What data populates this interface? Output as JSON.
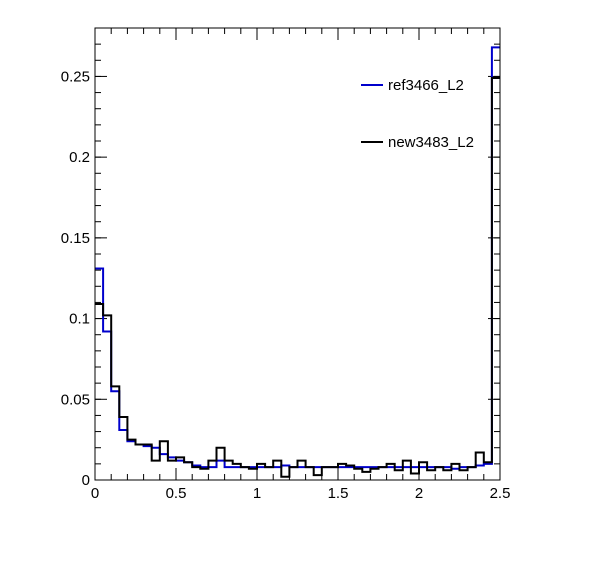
{
  "chart_data": {
    "type": "line",
    "style": "step-histogram",
    "xlim": [
      0,
      2.5
    ],
    "ylim": [
      0,
      0.28
    ],
    "x_ticks": [
      "0",
      "0.5",
      "1",
      "1.5",
      "2",
      "2.5"
    ],
    "y_ticks": [
      "0",
      "0.05",
      "0.1",
      "0.15",
      "0.2",
      "0.25"
    ],
    "bin_width": 0.05,
    "legend_position": "top-right",
    "series": [
      {
        "name": "ref3466_L2",
        "color": "#0000cc",
        "values": [
          0.131,
          0.092,
          0.055,
          0.031,
          0.024,
          0.022,
          0.021,
          0.02,
          0.016,
          0.014,
          0.012,
          0.011,
          0.009,
          0.008,
          0.008,
          0.012,
          0.008,
          0.008,
          0.008,
          0.008,
          0.008,
          0.008,
          0.008,
          0.009,
          0.008,
          0.008,
          0.008,
          0.008,
          0.008,
          0.008,
          0.008,
          0.008,
          0.008,
          0.008,
          0.008,
          0.008,
          0.008,
          0.008,
          0.008,
          0.008,
          0.008,
          0.008,
          0.008,
          0.008,
          0.007,
          0.008,
          0.008,
          0.009,
          0.01,
          0.268
        ]
      },
      {
        "name": "new3483_L2",
        "color": "#000000",
        "values": [
          0.109,
          0.102,
          0.058,
          0.039,
          0.025,
          0.022,
          0.022,
          0.012,
          0.024,
          0.012,
          0.014,
          0.011,
          0.008,
          0.007,
          0.012,
          0.02,
          0.012,
          0.01,
          0.008,
          0.007,
          0.01,
          0.008,
          0.012,
          0.002,
          0.008,
          0.012,
          0.008,
          0.003,
          0.008,
          0.008,
          0.01,
          0.009,
          0.007,
          0.005,
          0.007,
          0.008,
          0.01,
          0.006,
          0.012,
          0.004,
          0.011,
          0.006,
          0.008,
          0.006,
          0.01,
          0.006,
          0.008,
          0.017,
          0.011,
          0.249
        ]
      }
    ]
  }
}
